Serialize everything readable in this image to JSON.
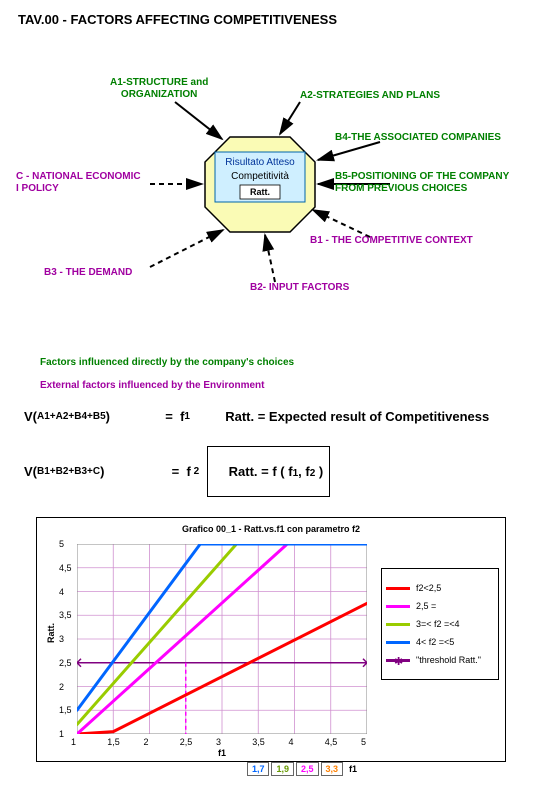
{
  "title": "TAV.00 - FACTORS AFFECTING COMPETITIVENESS",
  "octagon": {
    "fill": "#fafbb5",
    "stroke": "#000000",
    "center_box_fill": "#cfefff",
    "t1": "Risultato Atteso",
    "t2": "Competitività",
    "t3": "Ratt."
  },
  "labels": {
    "a1": "A1-STRUCTURE and\nORGANIZATION",
    "a2": "A2-STRATEGIES AND PLANS",
    "b4": "B4-THE ASSOCIATED COMPANIES",
    "b5": "B5-POSITIONING OF THE COMPANY\nFROM PREVIOUS CHOICES",
    "b1": "B1 - THE COMPETITIVE CONTEXT",
    "b2": "B2- INPUT FACTORS",
    "b3": "B3 - THE DEMAND",
    "c": "C - NATIONAL ECONOMIC\nI POLICY"
  },
  "legend1": "Factors influenced directly by the company's choices",
  "legend2": "External factors influenced by the Environment",
  "formula1_left": "V(",
  "formula1_sub": "A1+A2+B4+B5",
  "formula1_close": ")",
  "formula1_eq": "=",
  "formula1_rhs": "f",
  "formula1_rhs_sub": "1",
  "formula1_def": "Ratt. = Expected result of Competitiveness",
  "formula2_left": "V(",
  "formula2_sub": "B1+B2+B3+C",
  "formula2_close": ")",
  "formula2_eq": "=",
  "formula2_rhs": "f",
  "formula2_rhs_sub": " 2",
  "boxed": "Ratt. = f ( f",
  "boxed_s1": "1",
  "boxed_mid": ", f",
  "boxed_s2": "2",
  "boxed_end": " )",
  "chart": {
    "title": "Grafico 00_1 - Ratt.vs.f1 con parametro f2",
    "xlim": [
      1,
      5
    ],
    "ylim": [
      1,
      5
    ],
    "xticks": [
      1,
      1.5,
      2,
      2.5,
      3,
      3.5,
      4,
      4.5,
      5
    ],
    "yticks": [
      1,
      1.5,
      2,
      2.5,
      3,
      3.5,
      4,
      4.5,
      5
    ],
    "grid_color": "#d090d0",
    "y_label": "Ratt.",
    "x_label": "f1",
    "threshold_y": 2.5,
    "threshold_color": "#800080",
    "threshold_marker_color": "#800080",
    "dash_x": 2.5,
    "dash_color": "#ff00ff",
    "series": [
      {
        "name": "f2<2,5",
        "color": "#ff0000",
        "pts": [
          [
            1,
            1
          ],
          [
            1.5,
            1.05
          ],
          [
            5,
            3.75
          ]
        ]
      },
      {
        "name": "2,5 =<f2<3",
        "color": "#ff00ff",
        "pts": [
          [
            1,
            1
          ],
          [
            3.9,
            5
          ],
          [
            5,
            5
          ]
        ]
      },
      {
        "name": "3=< f2 =<4",
        "color": "#99cc00",
        "pts": [
          [
            1,
            1.2
          ],
          [
            3.2,
            5
          ],
          [
            5,
            5
          ]
        ]
      },
      {
        "name": "4< f2 =<5",
        "color": "#0066ff",
        "pts": [
          [
            1,
            1.5
          ],
          [
            2.7,
            5
          ],
          [
            5,
            5
          ]
        ]
      }
    ],
    "legend_threshold": "\"threshold Ratt.\"",
    "f1_boxes": [
      {
        "val": "1,7",
        "color": "#0066ff"
      },
      {
        "val": "1,9",
        "color": "#669900"
      },
      {
        "val": "2,5",
        "color": "#ff00ff"
      },
      {
        "val": "3,3",
        "color": "#ff8000"
      }
    ]
  }
}
